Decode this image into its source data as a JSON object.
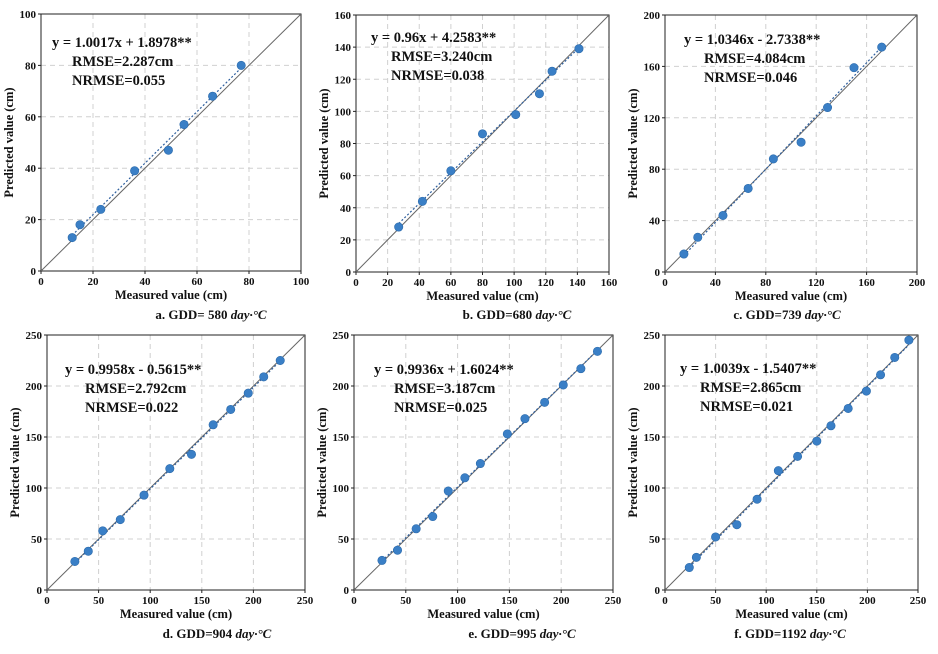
{
  "figure": {
    "xlabel": "Measured value (cm)",
    "ylabel": "Predicted value (cm)"
  },
  "panels": [
    {
      "caption_main": "a. GDD= 580 ",
      "caption_unit": "day·°C",
      "equation": "y = 1.0017x + 1.8978**",
      "rmse": "RMSE=2.287cm",
      "nrmse": "NRMSE=0.055"
    },
    {
      "caption_main": "b. GDD=680 ",
      "caption_unit": "day·°C",
      "equation": "y = 0.96x + 4.2583**",
      "rmse": "RMSE=3.240cm",
      "nrmse": "NRMSE=0.038"
    },
    {
      "caption_main": "c. GDD=739 ",
      "caption_unit": "day·°C",
      "equation": "y = 1.0346x - 2.7338**",
      "rmse": "RMSE=4.084cm",
      "nrmse": "NRMSE=0.046"
    },
    {
      "caption_main": "d. GDD=904 ",
      "caption_unit": "day·°C",
      "equation": "y = 0.9958x - 0.5615**",
      "rmse": "RMSE=2.792cm",
      "nrmse": "NRMSE=0.022"
    },
    {
      "caption_main": "e. GDD=995 ",
      "caption_unit": "day·°C",
      "equation": "y = 0.9936x + 1.6024**",
      "rmse": "RMSE=3.187cm",
      "nrmse": "NRMSE=0.025"
    },
    {
      "caption_main": "f. GDD=1192 ",
      "caption_unit": "day·°C",
      "equation": "y = 1.0039x - 1.5407**",
      "rmse": "RMSE=2.865cm",
      "nrmse": "NRMSE=0.021"
    }
  ],
  "colors": {
    "points": "#3a7fc6",
    "identity_line": "#666666",
    "fit_line": "#2e5f9e",
    "grid": "#d0d0d0"
  },
  "chart_data": [
    {
      "type": "scatter",
      "title": "",
      "xlabel": "Measured value (cm)",
      "ylabel": "Predicted value (cm)",
      "xlim": [
        0,
        100
      ],
      "ylim": [
        0,
        100
      ],
      "xticks": [
        0,
        20,
        40,
        60,
        80,
        100
      ],
      "yticks": [
        0,
        20,
        40,
        60,
        80,
        100
      ],
      "grid": true,
      "identity_line": true,
      "fit": {
        "slope": 1.0017,
        "intercept": 1.8978
      },
      "x": [
        12,
        15,
        23,
        36,
        49,
        55,
        66,
        77
      ],
      "y": [
        13,
        18,
        24,
        39,
        47,
        57,
        68,
        80
      ]
    },
    {
      "type": "scatter",
      "title": "",
      "xlabel": "Measured value (cm)",
      "ylabel": "Predicted value (cm)",
      "xlim": [
        0,
        160
      ],
      "ylim": [
        0,
        160
      ],
      "xticks": [
        0,
        20,
        40,
        60,
        80,
        100,
        120,
        140,
        160
      ],
      "yticks": [
        0,
        20,
        40,
        60,
        80,
        100,
        120,
        140,
        160
      ],
      "grid": true,
      "identity_line": true,
      "fit": {
        "slope": 0.96,
        "intercept": 4.2583
      },
      "x": [
        27,
        42,
        60,
        80,
        101,
        116,
        124,
        141
      ],
      "y": [
        28,
        44,
        63,
        86,
        98,
        111,
        125,
        139
      ]
    },
    {
      "type": "scatter",
      "title": "",
      "xlabel": "Measured value (cm)",
      "ylabel": "Predicted value (cm)",
      "xlim": [
        0,
        200
      ],
      "ylim": [
        0,
        200
      ],
      "xticks": [
        0,
        40,
        80,
        120,
        160,
        200
      ],
      "yticks": [
        0,
        40,
        80,
        120,
        160,
        200
      ],
      "grid": true,
      "identity_line": true,
      "fit": {
        "slope": 1.0346,
        "intercept": -2.7338
      },
      "x": [
        15,
        26,
        46,
        66,
        86,
        108,
        129,
        150,
        172
      ],
      "y": [
        14,
        27,
        44,
        65,
        88,
        101,
        128,
        159,
        175
      ]
    },
    {
      "type": "scatter",
      "title": "",
      "xlabel": "Measured value (cm)",
      "ylabel": "Predicted value (cm)",
      "xlim": [
        0,
        250
      ],
      "ylim": [
        0,
        250
      ],
      "xticks": [
        0,
        50,
        100,
        150,
        200,
        250
      ],
      "yticks": [
        0,
        50,
        100,
        150,
        200,
        250
      ],
      "grid": true,
      "identity_line": true,
      "fit": {
        "slope": 0.9958,
        "intercept": -0.5615
      },
      "x": [
        27,
        40,
        54,
        71,
        94,
        119,
        140,
        161,
        178,
        195,
        210,
        226
      ],
      "y": [
        28,
        38,
        58,
        69,
        93,
        119,
        133,
        162,
        177,
        193,
        209,
        225
      ]
    },
    {
      "type": "scatter",
      "title": "",
      "xlabel": "Measured value (cm)",
      "ylabel": "Predicted value (cm)",
      "xlim": [
        0,
        250
      ],
      "ylim": [
        0,
        250
      ],
      "xticks": [
        0,
        50,
        100,
        150,
        200,
        250
      ],
      "yticks": [
        0,
        50,
        100,
        150,
        200,
        250
      ],
      "grid": true,
      "identity_line": true,
      "fit": {
        "slope": 0.9936,
        "intercept": 1.6024
      },
      "x": [
        27,
        42,
        60,
        76,
        91,
        107,
        122,
        148,
        165,
        184,
        202,
        219,
        235
      ],
      "y": [
        29,
        39,
        60,
        72,
        97,
        110,
        124,
        153,
        168,
        184,
        201,
        217,
        234
      ]
    },
    {
      "type": "scatter",
      "title": "",
      "xlabel": "Measured value (cm)",
      "ylabel": "Predicted value (cm)",
      "xlim": [
        0,
        250
      ],
      "ylim": [
        0,
        250
      ],
      "xticks": [
        0,
        50,
        100,
        150,
        200,
        250
      ],
      "yticks": [
        0,
        50,
        100,
        150,
        200,
        250
      ],
      "grid": true,
      "identity_line": true,
      "fit": {
        "slope": 1.0039,
        "intercept": -1.5407
      },
      "x": [
        24,
        31,
        50,
        71,
        91,
        112,
        131,
        150,
        164,
        181,
        199,
        213,
        227,
        241
      ],
      "y": [
        22,
        32,
        52,
        64,
        89,
        117,
        131,
        146,
        161,
        178,
        195,
        211,
        228,
        245
      ]
    }
  ]
}
